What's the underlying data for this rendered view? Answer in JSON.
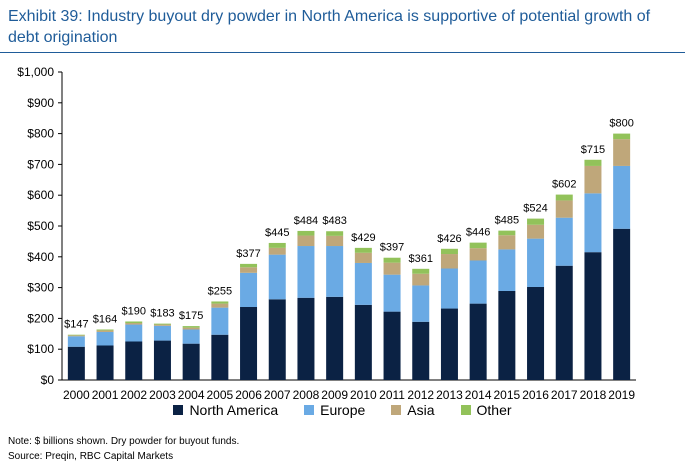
{
  "title": "Exhibit 39: Industry buyout dry powder in North America is supportive of potential growth of debt origination",
  "note": "Note: $ billions shown. Dry powder for buyout funds.",
  "source": "Source: Preqin, RBC Capital Markets",
  "colors": {
    "north_america": "#0b2244",
    "europe": "#6aaae4",
    "asia": "#bfa77a",
    "other": "#92c25a",
    "title": "#1f5c99"
  },
  "chart_data": {
    "type": "bar",
    "stacked": true,
    "categories": [
      "2000",
      "2001",
      "2002",
      "2003",
      "2004",
      "2005",
      "2006",
      "2007",
      "2008",
      "2009",
      "2010",
      "2011",
      "2012",
      "2013",
      "2014",
      "2015",
      "2016",
      "2017",
      "2018",
      "2019"
    ],
    "series": [
      {
        "name": "North America",
        "values": [
          108,
          112,
          125,
          128,
          118,
          147,
          237,
          262,
          267,
          270,
          244,
          222,
          189,
          232,
          248,
          289,
          302,
          371,
          415,
          491
        ]
      },
      {
        "name": "Europe",
        "values": [
          34,
          44,
          55,
          48,
          46,
          88,
          111,
          145,
          168,
          165,
          136,
          120,
          118,
          130,
          140,
          135,
          157,
          156,
          191,
          204
        ]
      },
      {
        "name": "Asia",
        "values": [
          3,
          5,
          5,
          4,
          6,
          13,
          18,
          22,
          34,
          33,
          33,
          39,
          38,
          47,
          40,
          46,
          45,
          56,
          89,
          87
        ]
      },
      {
        "name": "Other",
        "values": [
          2,
          3,
          5,
          3,
          5,
          7,
          11,
          16,
          15,
          15,
          16,
          16,
          16,
          17,
          18,
          15,
          20,
          19,
          20,
          18
        ]
      }
    ],
    "totals": [
      "$147",
      "$164",
      "$190",
      "$183",
      "$175",
      "$255",
      "$377",
      "$445",
      "$484",
      "$483",
      "$429",
      "$397",
      "$361",
      "$426",
      "$446",
      "$485",
      "$524",
      "$602",
      "$715",
      "$800"
    ],
    "ylim": [
      0,
      1000
    ],
    "yticks": [
      0,
      100,
      200,
      300,
      400,
      500,
      600,
      700,
      800,
      900,
      1000
    ],
    "ytick_labels": [
      "$0",
      "$100",
      "$200",
      "$300",
      "$400",
      "$500",
      "$600",
      "$700",
      "$800",
      "$900",
      "$1,000"
    ],
    "legend_position": "bottom",
    "grid": false
  }
}
